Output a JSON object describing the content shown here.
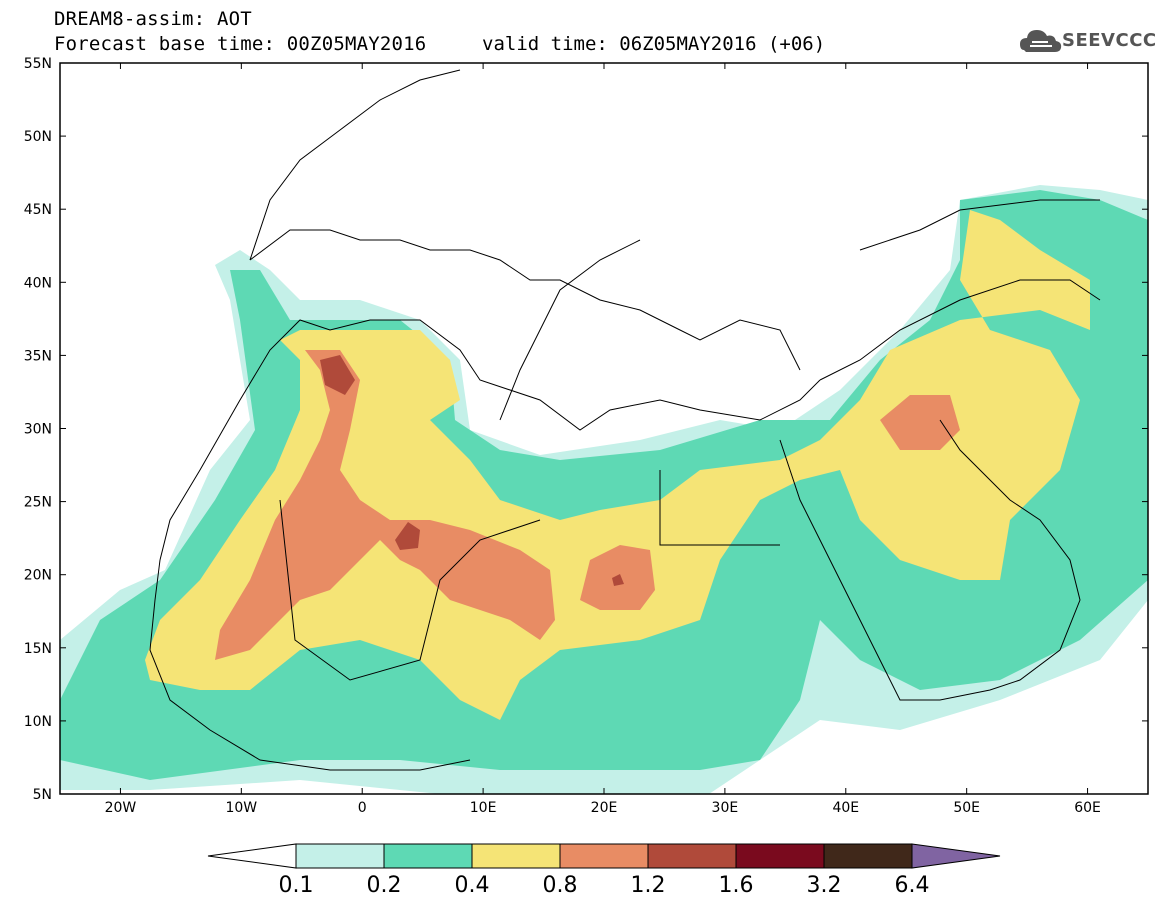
{
  "header": {
    "title": "DREAM8-assim: AOT",
    "base_time": "Forecast base time: 00Z05MAY2016",
    "valid_time": "valid time: 06Z05MAY2016 (+06)",
    "logo_text": "SEEVCCC"
  },
  "map": {
    "lon_range": [
      -25,
      65
    ],
    "lat_range": [
      5,
      55
    ],
    "lat_labels": [
      "55N",
      "50N",
      "45N",
      "40N",
      "35N",
      "30N",
      "25N",
      "20N",
      "15N",
      "10N",
      "5N"
    ],
    "lon_labels": [
      "20W",
      "10W",
      "0",
      "10E",
      "20E",
      "30E",
      "40E",
      "50E",
      "60E"
    ]
  },
  "legend": {
    "thresholds": [
      "0.1",
      "0.2",
      "0.4",
      "0.8",
      "1.2",
      "1.6",
      "3.2",
      "6.4"
    ],
    "colors": [
      "#ffffff",
      "#c4f0e8",
      "#5ed9b4",
      "#f5e476",
      "#e88c64",
      "#b04a3a",
      "#7a0a1e",
      "#40281a",
      "#8064a2"
    ]
  }
}
